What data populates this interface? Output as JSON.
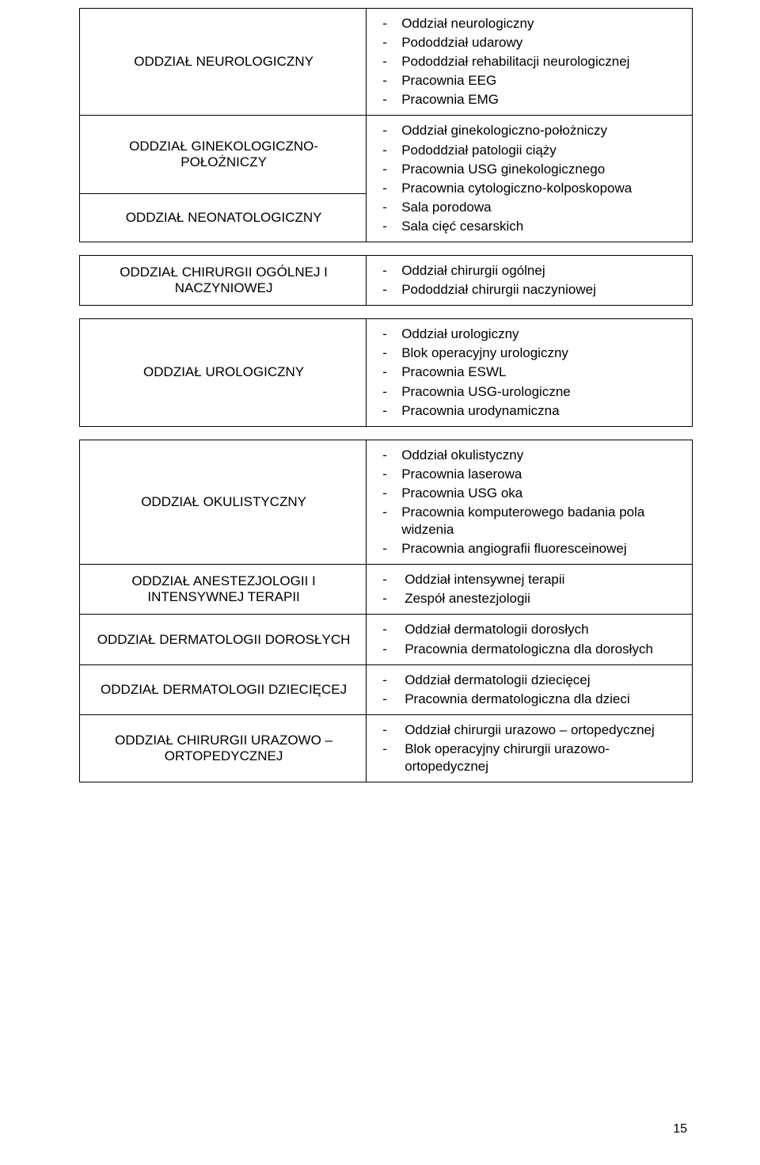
{
  "page_number": "15",
  "tables": [
    {
      "rows": [
        {
          "left": "ODDZIAŁ NEUROLOGICZNY",
          "right_items": [
            "Oddział neurologiczny",
            "Pododdział udarowy",
            "Pododdział rehabilitacji neurologicznej",
            "Pracownia EEG",
            "Pracownia EMG"
          ],
          "right_merged": false
        },
        {
          "left": "ODDZIAŁ GINEKOLOGICZNO-POŁOŻNICZY",
          "right_items": [
            "Oddział ginekologiczno-położniczy",
            "Pododdział patologii ciąży",
            "Pracownia USG ginekologicznego",
            "Pracownia cytologiczno-kolposkopowa",
            "Sala porodowa",
            "Sala cięć cesarskich"
          ],
          "right_merged": true,
          "merge_span": 2
        },
        {
          "left": "ODDZIAŁ NEONATOLOGICZNY",
          "right_items": [],
          "right_merged_skip": true
        }
      ]
    },
    {
      "rows": [
        {
          "left": "ODDZIAŁ CHIRURGII OGÓLNEJ I NACZYNIOWEJ",
          "right_items": [
            "Oddział chirurgii ogólnej",
            " Pododdział chirurgii naczyniowej"
          ]
        }
      ]
    },
    {
      "rows": [
        {
          "left": "ODDZIAŁ UROLOGICZNY",
          "right_items": [
            "Oddział urologiczny",
            "Blok operacyjny urologiczny",
            "Pracownia ESWL",
            "Pracownia USG-urologiczne",
            "Pracownia urodynamiczna"
          ]
        }
      ]
    },
    {
      "rows": [
        {
          "left": "ODDZIAŁ OKULISTYCZNY",
          "right_items": [
            "Oddział okulistyczny",
            "Pracownia laserowa",
            "Pracownia USG oka",
            "Pracownia komputerowego badania pola widzenia",
            "Pracownia angiografii fluoresceinowej"
          ]
        },
        {
          "left": "ODDZIAŁ ANESTEZJOLOGII I INTENSYWNEJ TERAPII",
          "right_items": [
            " Oddział intensywnej terapii",
            " Zespół anestezjologii"
          ],
          "list_variant": "b"
        },
        {
          "left": "ODDZIAŁ DERMATOLOGII DOROSŁYCH",
          "right_items": [
            " Oddział dermatologii dorosłych",
            " Pracownia dermatologiczna dla dorosłych"
          ],
          "list_variant": "b"
        },
        {
          "left": "ODDZIAŁ DERMATOLOGII DZIECIĘCEJ",
          "right_items": [
            " Oddział dermatologii dziecięcej",
            " Pracownia dermatologiczna dla dzieci"
          ],
          "list_variant": "b"
        },
        {
          "left": "ODDZIAŁ CHIRURGII URAZOWO – ORTOPEDYCZNEJ",
          "right_items": [
            " Oddział chirurgii urazowo – ortopedycznej",
            " Blok operacyjny chirurgii urazowo-ortopedycznej"
          ],
          "list_variant": "b"
        }
      ]
    }
  ]
}
